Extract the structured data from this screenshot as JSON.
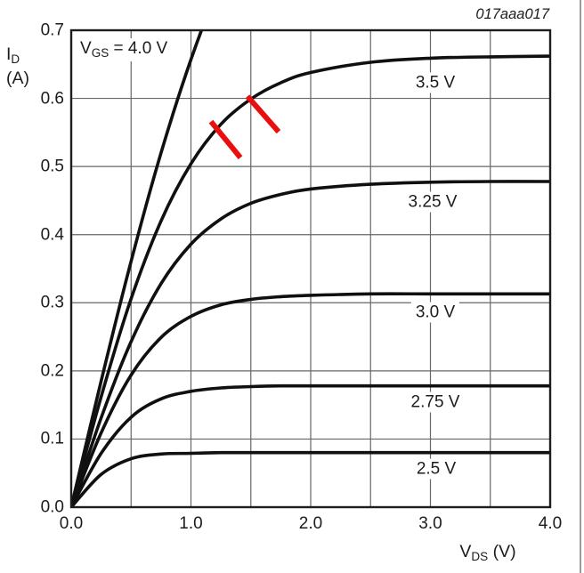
{
  "figure_id": "017aaa017",
  "colors": {
    "curve": "#101010",
    "grid": "#666666",
    "frame": "#1d1d1d",
    "annotation_red": "#e90f0f",
    "text": "#1c1c1c",
    "page_edge": "#9a9a9a",
    "background": "#ffffff"
  },
  "y_axis": {
    "symbol": "I",
    "subscript": "D",
    "unit": "(A)",
    "ticks": [
      "0.7",
      "0.6",
      "0.5",
      "0.4",
      "0.3",
      "0.2",
      "0.1",
      "0.0"
    ]
  },
  "x_axis": {
    "symbol": "V",
    "subscript": "DS",
    "unit_rest": " (V)",
    "ticks": [
      "0.0",
      "1.0",
      "2.0",
      "3.0",
      "4.0"
    ]
  },
  "inline_label": {
    "symbol": "V",
    "subscript": "GS",
    "rest": " = 4.0 V"
  },
  "curve_labels": [
    "3.5 V",
    "3.25 V",
    "3.0 V",
    "2.75 V",
    "2.5 V"
  ],
  "chart_data": {
    "type": "line",
    "title": "",
    "xlabel": "VDS (V)",
    "ylabel": "ID (A)",
    "xlim": [
      0,
      4
    ],
    "ylim": [
      0,
      0.7
    ],
    "x_tick_step": 1.0,
    "y_tick_step": 0.1,
    "x_grid_step": 0.5,
    "y_grid_step": 0.1,
    "grid": true,
    "legend_position": "inline-right",
    "series": [
      {
        "name": "VGS = 4.0 V",
        "x": [
          0,
          0.25,
          0.5,
          0.75,
          1.0,
          1.25,
          1.5
        ],
        "y": [
          0,
          0.185,
          0.361,
          0.52,
          0.657,
          0.772,
          0.863
        ]
      },
      {
        "name": "VGS = 3.5 V",
        "x": [
          0,
          0.25,
          0.5,
          0.75,
          1.0,
          1.25,
          1.5,
          1.75,
          2.0,
          2.5,
          3.0,
          3.5,
          4.0
        ],
        "y": [
          0,
          0.162,
          0.306,
          0.42,
          0.504,
          0.562,
          0.599,
          0.623,
          0.638,
          0.653,
          0.659,
          0.661,
          0.662
        ]
      },
      {
        "name": "VGS = 3.25 V",
        "x": [
          0,
          0.25,
          0.5,
          0.75,
          1.0,
          1.25,
          1.5,
          1.75,
          2.0,
          2.5,
          3.0,
          3.5,
          4.0
        ],
        "y": [
          0,
          0.131,
          0.243,
          0.328,
          0.386,
          0.423,
          0.446,
          0.459,
          0.467,
          0.474,
          0.477,
          0.478,
          0.478
        ]
      },
      {
        "name": "VGS = 3.0 V",
        "x": [
          0,
          0.25,
          0.5,
          0.75,
          1.0,
          1.25,
          1.5,
          1.75,
          2.0,
          2.5,
          3.0,
          3.5,
          4.0
        ],
        "y": [
          0,
          0.109,
          0.194,
          0.249,
          0.28,
          0.297,
          0.305,
          0.309,
          0.311,
          0.313,
          0.313,
          0.313,
          0.313
        ]
      },
      {
        "name": "VGS = 2.75 V",
        "x": [
          0,
          0.25,
          0.5,
          0.75,
          1.0,
          1.25,
          1.5,
          1.75,
          2.0,
          2.5,
          3.0,
          3.5,
          4.0
        ],
        "y": [
          0,
          0.079,
          0.132,
          0.159,
          0.17,
          0.175,
          0.177,
          0.178,
          0.178,
          0.178,
          0.178,
          0.178,
          0.178
        ]
      },
      {
        "name": "VGS = 2.5 V",
        "x": [
          0,
          0.25,
          0.5,
          0.75,
          1.0,
          1.25,
          1.5,
          1.75,
          2.0,
          2.5,
          3.0,
          3.5,
          4.0
        ],
        "y": [
          0,
          0.048,
          0.071,
          0.078,
          0.079,
          0.08,
          0.08,
          0.08,
          0.08,
          0.08,
          0.08,
          0.08,
          0.08
        ]
      }
    ],
    "annotations": {
      "red_slashes": [
        {
          "x1": 1.167,
          "y1": 0.566,
          "x2": 1.413,
          "y2": 0.513
        },
        {
          "x1": 1.472,
          "y1": 0.603,
          "x2": 1.732,
          "y2": 0.551
        }
      ],
      "note": "two red slash marks crossing the 3.5 V curve"
    }
  }
}
